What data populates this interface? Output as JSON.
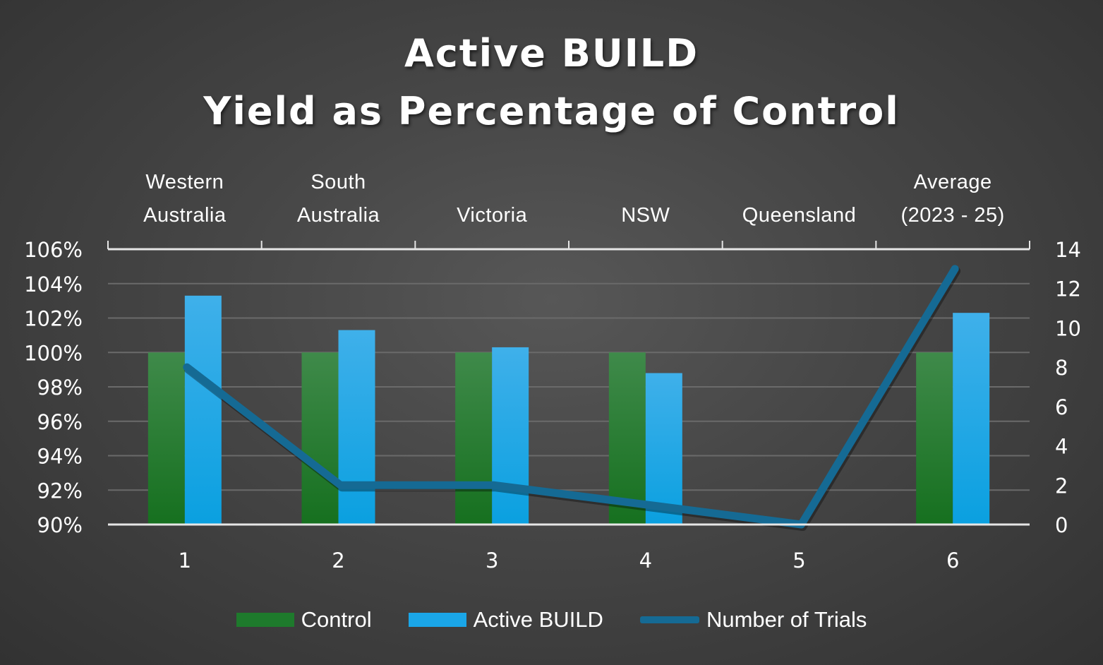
{
  "title": {
    "line1": "Active BUILD",
    "line2": "Yield as Percentage of Control"
  },
  "colors": {
    "control": "#1e7a2c",
    "active_build": "#1aa6e8",
    "trials_line": "#156a94",
    "background": "#444444",
    "gridline": "#6a6a6a",
    "axis": "#e6e6e6"
  },
  "top_categories": [
    {
      "line1": "Western",
      "line2": "Australia"
    },
    {
      "line1": "South",
      "line2": "Australia"
    },
    {
      "line1": "",
      "line2": "Victoria"
    },
    {
      "line1": "",
      "line2": "NSW"
    },
    {
      "line1": "",
      "line2": "Queensland"
    },
    {
      "line1": "Average",
      "line2": "(2023 - 25)"
    }
  ],
  "legend": [
    {
      "label": "Control",
      "type": "bar",
      "color": "#1e7a2c"
    },
    {
      "label": "Active BUILD",
      "type": "bar",
      "color": "#1aa6e8"
    },
    {
      "label": "Number of Trials",
      "type": "line",
      "color": "#156a94"
    }
  ],
  "chart_data": {
    "type": "bar",
    "title": "Active BUILD Yield as Percentage of Control",
    "categories": [
      "1",
      "2",
      "3",
      "4",
      "5",
      "6"
    ],
    "category_labels": [
      "Western Australia",
      "South Australia",
      "Victoria",
      "NSW",
      "Queensland",
      "Average (2023 - 25)"
    ],
    "xlabel": "",
    "ylabel": "",
    "ylim": [
      90,
      106
    ],
    "y_ticks": [
      "90%",
      "92%",
      "94%",
      "96%",
      "98%",
      "100%",
      "102%",
      "104%",
      "106%"
    ],
    "y2lim": [
      0,
      14
    ],
    "y2_ticks": [
      "0",
      "2",
      "4",
      "6",
      "8",
      "10",
      "12",
      "14"
    ],
    "grid": true,
    "legend_position": "bottom",
    "series": [
      {
        "name": "Control",
        "type": "bar",
        "axis": "left",
        "values": [
          100,
          100,
          100,
          100,
          null,
          100
        ]
      },
      {
        "name": "Active BUILD",
        "type": "bar",
        "axis": "left",
        "values": [
          103.3,
          101.3,
          100.3,
          98.8,
          null,
          102.3
        ]
      },
      {
        "name": "Number of Trials",
        "type": "line",
        "axis": "right",
        "values": [
          8,
          2,
          2,
          1,
          0,
          13
        ]
      }
    ]
  }
}
